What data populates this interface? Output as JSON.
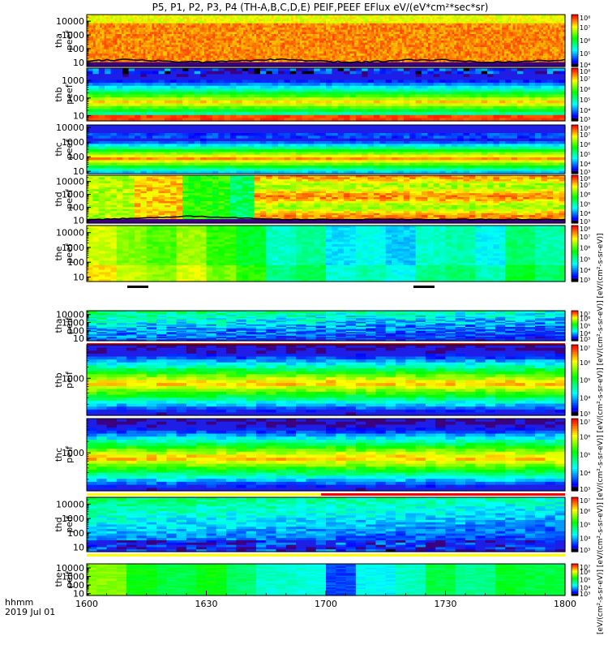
{
  "title": "P5, P1, P2, P3, P4 (TH-A,B,C,D,E) PEIF,PEEF EFlux eV/(eV*cm²*sec*sr)",
  "footer": {
    "time_label": "hhmm",
    "date_label": "2019 Jul 01"
  },
  "colorbar_unit_text": "[eV/(cm²-s-sr-eV)] [eV/(cm²-s-sr-eV)] [eV/(cm²-s-sr-eV)] [eV/(cm²-s-sr-eV)] [eV/(cm²-s-sr-eV)] [eV/(cm²-s-sr-eV)]",
  "chart_data": {
    "type": "heatmap",
    "x_axis": {
      "ticks": [
        "1600",
        "1630",
        "1700",
        "1730",
        "1800"
      ],
      "unit": "hhmm",
      "range": [
        "16:00",
        "18:00"
      ]
    },
    "y_scale": "log",
    "colormap": "rainbow (blue=low, red=high)",
    "panels": [
      {
        "name": "tha peef",
        "ylabel": [
          "tha",
          "peef"
        ],
        "yrange": [
          5,
          30000
        ],
        "yticks": [
          10,
          100,
          1000,
          10000
        ],
        "ytick_labels": [
          "10",
          "100",
          "1000",
          "10000"
        ],
        "cbar_range": [
          4,
          8
        ],
        "cbar_ticks": [
          "10⁴",
          "10⁵",
          "10⁶",
          "10⁷",
          "10⁸"
        ],
        "pattern": "electron_a",
        "status": "none"
      },
      {
        "name": "thb peef",
        "ylabel": [
          "thb",
          "peef"
        ],
        "yrange": [
          5,
          5000
        ],
        "yticks": [
          10,
          100,
          1000
        ],
        "ytick_labels": [
          "10",
          "100",
          "1000"
        ],
        "cbar_range": [
          3,
          8
        ],
        "cbar_ticks": [
          "10³",
          "10⁴",
          "10⁵",
          "10⁶",
          "10⁷",
          "10⁸"
        ],
        "pattern": "electron_b",
        "status": "white"
      },
      {
        "name": "thc peef",
        "ylabel": [
          "thc",
          "peef"
        ],
        "yrange": [
          7,
          15000
        ],
        "yticks": [
          10,
          100,
          1000,
          10000
        ],
        "ytick_labels": [
          "10",
          "100",
          "1000",
          "10000"
        ],
        "cbar_range": [
          3,
          8
        ],
        "cbar_ticks": [
          "10³",
          "10⁴",
          "10⁵",
          "10⁶",
          "10⁷",
          "10⁸"
        ],
        "pattern": "electron_c",
        "status": "white"
      },
      {
        "name": "thd peef",
        "ylabel": [
          "thd",
          "peef"
        ],
        "yrange": [
          6,
          30000
        ],
        "yticks": [
          10,
          100,
          1000,
          10000
        ],
        "ytick_labels": [
          "10",
          "100",
          "1000",
          "10000"
        ],
        "cbar_range": [
          3,
          8
        ],
        "cbar_ticks": [
          "10³",
          "10⁴",
          "10⁵",
          "10⁶",
          "10⁷",
          "10⁸"
        ],
        "pattern": "electron_d",
        "status": "none"
      },
      {
        "name": "the peef",
        "ylabel": [
          "the",
          "peef"
        ],
        "yrange": [
          5,
          30000
        ],
        "yticks": [
          10,
          100,
          1000,
          10000
        ],
        "ytick_labels": [
          "10",
          "100",
          "1000",
          "10000"
        ],
        "cbar_range": [
          3,
          8
        ],
        "cbar_ticks": [
          "10³",
          "10⁴",
          "10⁵",
          "10⁶",
          "10⁷",
          "10⁸"
        ],
        "pattern": "electron_e",
        "status": "white"
      },
      {
        "name": "tha peif",
        "ylabel": [
          "tha",
          "peif"
        ],
        "yrange": [
          5,
          30000
        ],
        "yticks": [
          10,
          100,
          1000,
          10000
        ],
        "ytick_labels": [
          "10",
          "100",
          "1000",
          "10000"
        ],
        "cbar_range": [
          3,
          7
        ],
        "cbar_ticks": [
          "10³",
          "10⁴",
          "10⁵",
          "10⁶",
          "10⁷"
        ],
        "pattern": "ion_a",
        "status": "red"
      },
      {
        "name": "thb peif",
        "ylabel": [
          "thb",
          "peif"
        ],
        "yrange": [
          100,
          8000
        ],
        "yticks": [
          1000
        ],
        "ytick_labels": [
          "1000"
        ],
        "cbar_range": [
          3,
          7
        ],
        "cbar_ticks": [
          "10³",
          "10⁴",
          "10⁵",
          "10⁶",
          "10⁷"
        ],
        "pattern": "ion_b",
        "status": "white"
      },
      {
        "name": "thc peif",
        "ylabel": [
          "thc",
          "peif"
        ],
        "yrange": [
          100,
          8000
        ],
        "yticks": [
          1000
        ],
        "ytick_labels": [
          "1000"
        ],
        "cbar_range": [
          3,
          7
        ],
        "cbar_ticks": [
          "10³",
          "10⁴",
          "10⁵",
          "10⁶",
          "10⁷"
        ],
        "pattern": "ion_c",
        "status": "yellow-red"
      },
      {
        "name": "thd peif",
        "ylabel": [
          "thd",
          "peif"
        ],
        "yrange": [
          5,
          30000
        ],
        "yticks": [
          10,
          100,
          1000,
          10000
        ],
        "ytick_labels": [
          "10",
          "100",
          "1000",
          "10000"
        ],
        "cbar_range": [
          3,
          7
        ],
        "cbar_ticks": [
          "10³",
          "10⁴",
          "10⁵",
          "10⁶",
          "10⁷"
        ],
        "pattern": "ion_d",
        "status": "yellow"
      },
      {
        "name": "the peif",
        "ylabel": [
          "the",
          "peif"
        ],
        "yrange": [
          6,
          30000
        ],
        "yticks": [
          10,
          100,
          1000,
          10000
        ],
        "ytick_labels": [
          "10",
          "100",
          "1000",
          "10000"
        ],
        "cbar_range": [
          3,
          7
        ],
        "cbar_ticks": [
          "10³",
          "10⁴",
          "10⁵",
          "10⁶",
          "10⁷"
        ],
        "pattern": "ion_e",
        "status": "none"
      }
    ]
  }
}
